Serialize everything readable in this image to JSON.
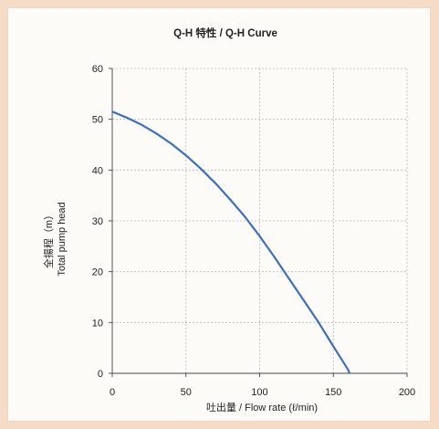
{
  "chart_data": {
    "type": "line",
    "title": "Q-H 特性 / Q-H Curve",
    "xlabel": "吐出量 / Flow rate (ℓ/min)",
    "ylabel_lines": [
      "全揚程（m）",
      "Total pump head"
    ],
    "xlim": [
      0,
      200
    ],
    "ylim": [
      0,
      60
    ],
    "x_ticks": [
      0,
      50,
      100,
      150,
      200
    ],
    "y_ticks": [
      0,
      10,
      20,
      30,
      40,
      50,
      60
    ],
    "grid": true,
    "series": [
      {
        "color": "#3a6fc8",
        "points": [
          [
            0,
            51.5
          ],
          [
            10,
            50.3
          ],
          [
            20,
            48.9
          ],
          [
            30,
            47.2
          ],
          [
            40,
            45.2
          ],
          [
            50,
            42.9
          ],
          [
            60,
            40.3
          ],
          [
            70,
            37.4
          ],
          [
            80,
            34.2
          ],
          [
            90,
            30.8
          ],
          [
            100,
            27.0
          ],
          [
            110,
            22.9
          ],
          [
            120,
            18.6
          ],
          [
            130,
            14.3
          ],
          [
            140,
            10.0
          ],
          [
            150,
            5.3
          ],
          [
            160,
            0.7
          ],
          [
            161,
            0
          ]
        ]
      }
    ]
  }
}
